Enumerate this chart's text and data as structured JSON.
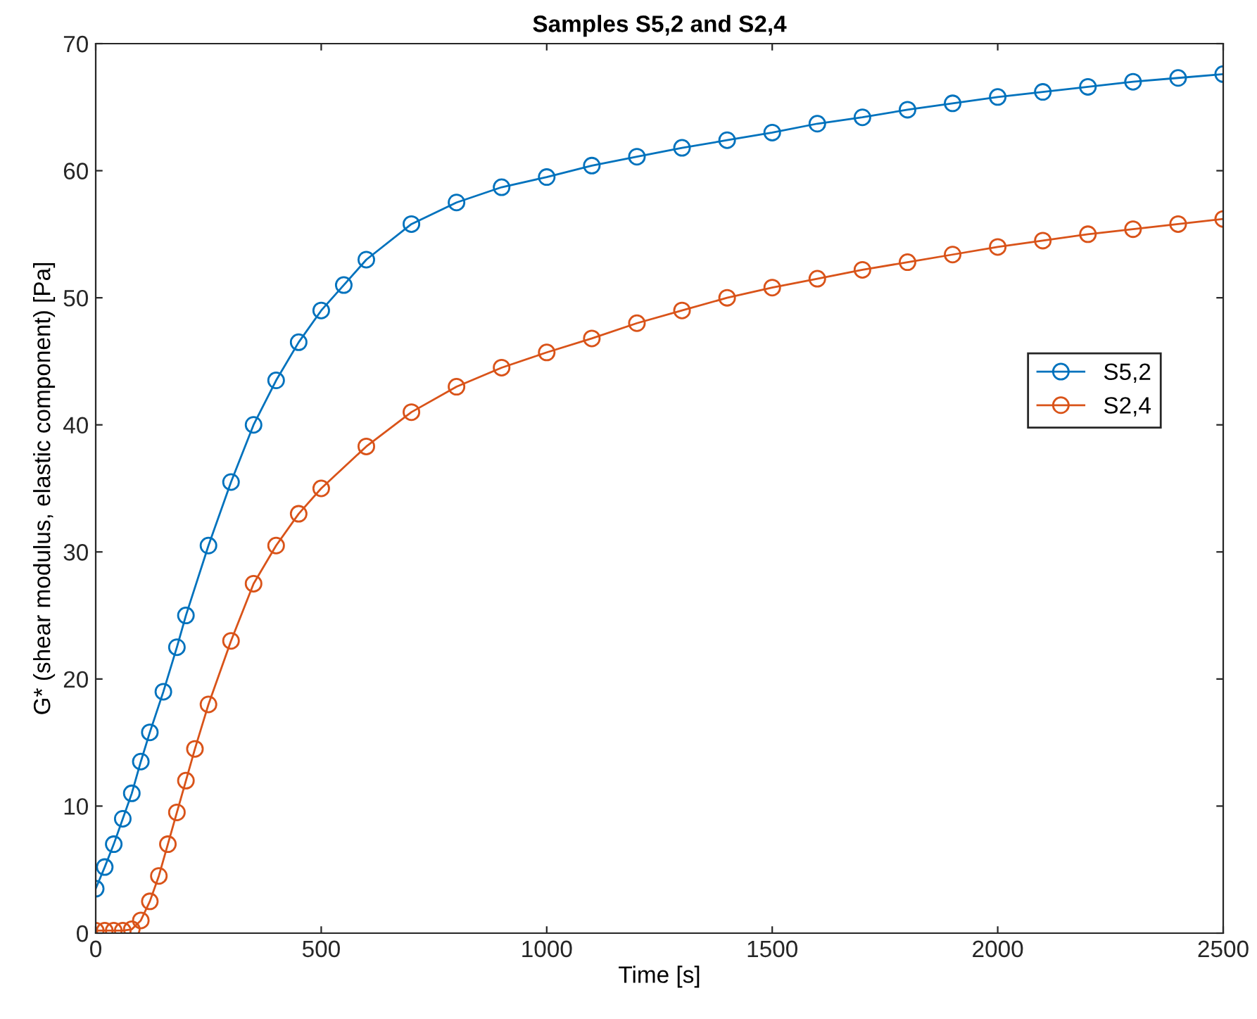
{
  "chart_data": {
    "type": "line",
    "title": "Samples S5,2 and S2,4",
    "xlabel": "Time [s]",
    "ylabel": "G* (shear modulus, elastic component) [Pa]",
    "xlim": [
      0,
      2500
    ],
    "xticks": [
      0,
      500,
      1000,
      1500,
      2000,
      2500
    ],
    "ylim": [
      0,
      70
    ],
    "yticks": [
      0,
      10,
      20,
      30,
      40,
      50,
      60,
      70
    ],
    "grid": false,
    "legend": "right",
    "marker": "circle",
    "line_style": "solid",
    "series": [
      {
        "name": "S5,2",
        "color": "#0072bd",
        "x": [
          0,
          20,
          40,
          60,
          80,
          100,
          120,
          150,
          180,
          200,
          250,
          300,
          350,
          400,
          450,
          500,
          550,
          600,
          700,
          800,
          900,
          1000,
          1100,
          1200,
          1300,
          1400,
          1500,
          1600,
          1700,
          1800,
          1900,
          2000,
          2100,
          2200,
          2300,
          2400,
          2500
        ],
        "values": [
          3.5,
          5.2,
          7,
          9,
          11,
          13.5,
          15.8,
          19,
          22.5,
          25,
          30.5,
          35.5,
          40,
          43.5,
          46.5,
          49,
          51,
          53,
          55.8,
          57.5,
          58.7,
          59.5,
          60.4,
          61.1,
          61.8,
          62.4,
          63.0,
          63.7,
          64.2,
          64.8,
          65.3,
          65.8,
          66.2,
          66.6,
          67.0,
          67.3,
          67.6
        ]
      },
      {
        "name": "S2,4",
        "color": "#d95319",
        "x": [
          0,
          20,
          40,
          60,
          80,
          100,
          120,
          140,
          160,
          180,
          200,
          220,
          250,
          300,
          350,
          400,
          450,
          500,
          600,
          700,
          800,
          900,
          1000,
          1100,
          1200,
          1300,
          1400,
          1500,
          1600,
          1700,
          1800,
          1900,
          2000,
          2100,
          2200,
          2300,
          2400,
          2500
        ],
        "values": [
          0.2,
          0.2,
          0.2,
          0.2,
          0.3,
          1,
          2.5,
          4.5,
          7,
          9.5,
          12,
          14.5,
          18,
          23,
          27.5,
          30.5,
          33,
          35,
          38.3,
          41,
          43,
          44.5,
          45.7,
          46.8,
          48,
          49,
          50,
          50.8,
          51.5,
          52.2,
          52.8,
          53.4,
          54,
          54.5,
          55,
          55.4,
          55.8,
          56.2
        ]
      }
    ]
  }
}
